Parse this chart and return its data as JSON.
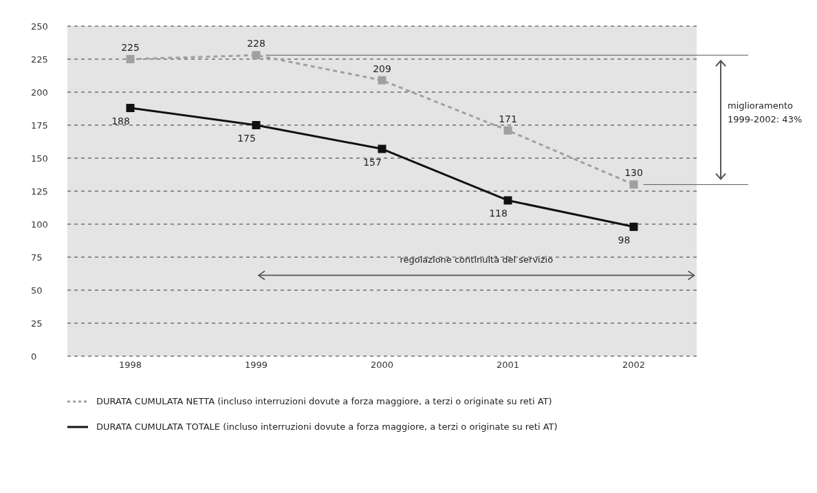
{
  "chart_data": {
    "type": "line",
    "categories": [
      "1998",
      "1999",
      "2000",
      "2001",
      "2002"
    ],
    "series": [
      {
        "name": "DURATA CUMULATA NETTA (incluso interruzioni dovute a forza maggiore, a terzi o originate su reti AT)",
        "color": "#a0a0a0",
        "line_style": "dashed",
        "values": [
          225,
          228,
          209,
          171,
          130
        ]
      },
      {
        "name": "DURATA CUMULATA TOTALE (incluso interruzioni dovute a forza maggiore, a terzi o originate su reti AT)",
        "color": "#111111",
        "line_style": "solid",
        "values": [
          188,
          175,
          157,
          118,
          98
        ]
      }
    ],
    "ref_lines": [
      {
        "axis": "y",
        "value": 228,
        "color": "#555555"
      },
      {
        "axis": "y",
        "value": 130,
        "color": "#555555"
      }
    ],
    "ylim": [
      0,
      250
    ],
    "yticks": [
      0,
      25,
      50,
      75,
      100,
      125,
      150,
      175,
      200,
      225,
      250
    ],
    "grid": "y",
    "legend": "bottom",
    "marker": "square",
    "data_labels": true,
    "annotations": [
      "miglioramento 1999-2002: 43%",
      "regolazione continuità del servizio"
    ]
  }
}
